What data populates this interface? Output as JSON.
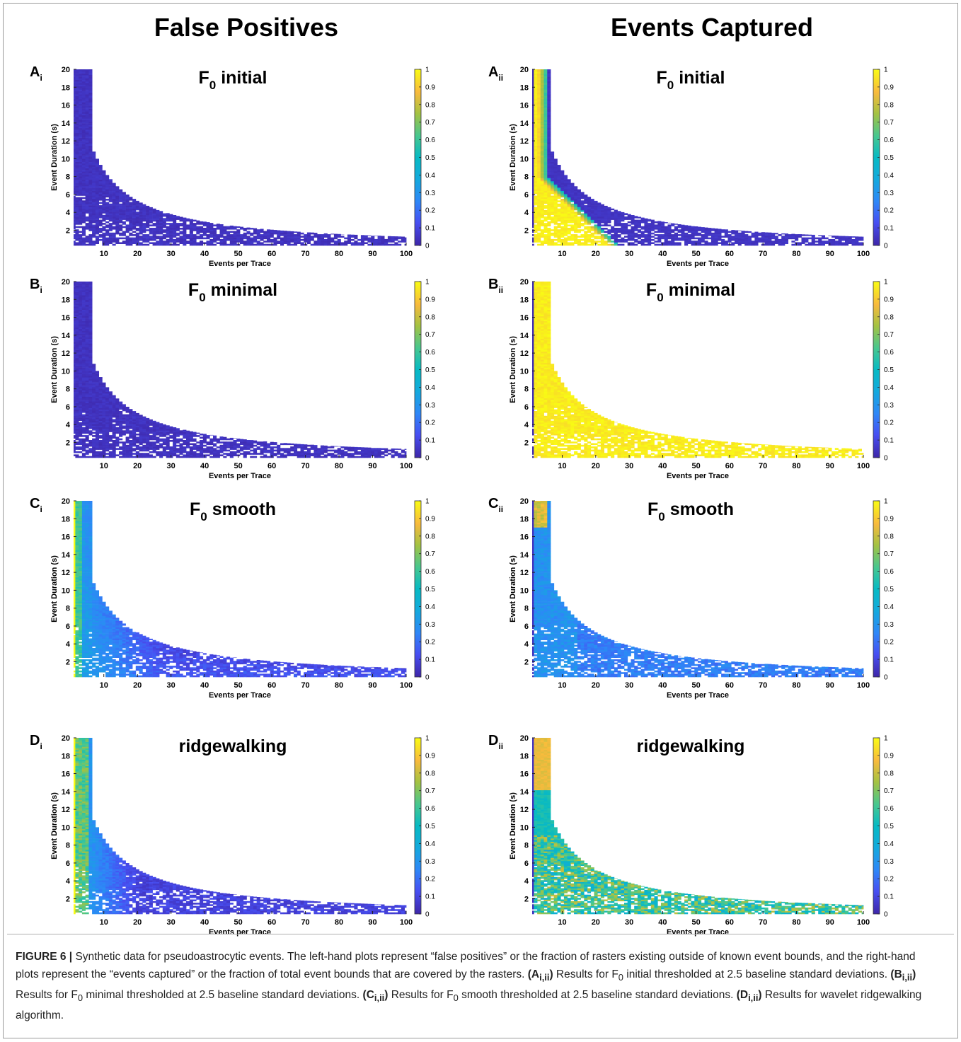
{
  "header": {
    "left_title": "False Positives",
    "right_title": "Events Captured"
  },
  "caption": {
    "figure_label": "FIGURE 6 |",
    "p1": " Synthetic data for pseudoastrocytic events. The left-hand plots represent “false positives” or the fraction of rasters existing outside of known event bounds, and the right-hand plots represent the “events captured” or the fraction of total event bounds that are covered by the rasters. ",
    "a_tag": "(A",
    "a_sub": "i,ii",
    "a_close": ")",
    "a_text": " Results for F",
    "a_text2": " initial thresholded at 2.5 baseline standard deviations. ",
    "b_tag": "(B",
    "b_sub": "i,ii",
    "b_close": ")",
    "b_text": " Results for F",
    "b_text2": " minimal thresholded at 2.5 baseline standard deviations. ",
    "c_tag": "(C",
    "c_sub": "i,ii",
    "c_close": ")",
    "c_text": " Results for F",
    "c_text2": " smooth thresholded at 2.5 baseline standard deviations. ",
    "d_tag": "(D",
    "d_sub": "i,ii",
    "d_close": ")",
    "d_text": " Results for wavelet ridgewalking algorithm.",
    "sub0": "0"
  },
  "chart_data": [
    {
      "type": "heatmap",
      "panel": "A",
      "panel_sub": "i",
      "title_main": "F",
      "title_sub": "0",
      "title_rest": " initial",
      "xlabel": "Events per Trace",
      "ylabel": "Event Duration (s)",
      "xticks": [
        10,
        20,
        30,
        40,
        50,
        60,
        70,
        80,
        90,
        100
      ],
      "yticks": [
        2,
        4,
        6,
        8,
        10,
        12,
        14,
        16,
        18,
        20
      ],
      "xlim": [
        1,
        100
      ],
      "ylim": [
        0.3,
        20
      ],
      "colorbar_ticks": [
        "0",
        "0.1",
        "0.2",
        "0.3",
        "0.4",
        "0.5",
        "0.6",
        "0.7",
        "0.8",
        "0.9",
        "1"
      ],
      "clim": [
        0,
        1
      ],
      "colormap": "parula",
      "pattern": "fp-low",
      "approx_value": 0.02
    },
    {
      "type": "heatmap",
      "panel": "A",
      "panel_sub": "ii",
      "title_main": "F",
      "title_sub": "0",
      "title_rest": " initial",
      "xlabel": "Events per Trace",
      "ylabel": "Event Duration (s)",
      "xticks": [
        10,
        20,
        30,
        40,
        50,
        60,
        70,
        80,
        90,
        100
      ],
      "yticks": [
        2,
        4,
        6,
        8,
        10,
        12,
        14,
        16,
        18,
        20
      ],
      "xlim": [
        1,
        100
      ],
      "ylim": [
        0.3,
        20
      ],
      "colorbar_ticks": [
        "0",
        "0.1",
        "0.2",
        "0.3",
        "0.4",
        "0.5",
        "0.6",
        "0.7",
        "0.8",
        "0.9",
        "1"
      ],
      "clim": [
        0,
        1
      ],
      "colormap": "parula",
      "pattern": "ec-initial",
      "approx_value_left_band": 1,
      "approx_value_right": 0.02
    },
    {
      "type": "heatmap",
      "panel": "B",
      "panel_sub": "i",
      "title_main": "F",
      "title_sub": "0",
      "title_rest": " minimal",
      "xlabel": "Events per Trace",
      "ylabel": "Event Duration (s)",
      "xticks": [
        10,
        20,
        30,
        40,
        50,
        60,
        70,
        80,
        90,
        100
      ],
      "yticks": [
        2,
        4,
        6,
        8,
        10,
        12,
        14,
        16,
        18,
        20
      ],
      "xlim": [
        1,
        100
      ],
      "ylim": [
        0.3,
        20
      ],
      "colorbar_ticks": [
        "0",
        "0.1",
        "0.2",
        "0.3",
        "0.4",
        "0.5",
        "0.6",
        "0.7",
        "0.8",
        "0.9",
        "1"
      ],
      "clim": [
        0,
        1
      ],
      "colormap": "parula",
      "pattern": "fp-low",
      "approx_value": 0.02
    },
    {
      "type": "heatmap",
      "panel": "B",
      "panel_sub": "ii",
      "title_main": "F",
      "title_sub": "0",
      "title_rest": " minimal",
      "xlabel": "Events per Trace",
      "ylabel": "Event Duration (s)",
      "xticks": [
        10,
        20,
        30,
        40,
        50,
        60,
        70,
        80,
        90,
        100
      ],
      "yticks": [
        2,
        4,
        6,
        8,
        10,
        12,
        14,
        16,
        18,
        20
      ],
      "xlim": [
        1,
        100
      ],
      "ylim": [
        0.3,
        20
      ],
      "colorbar_ticks": [
        "0",
        "0.1",
        "0.2",
        "0.3",
        "0.4",
        "0.5",
        "0.6",
        "0.7",
        "0.8",
        "0.9",
        "1"
      ],
      "clim": [
        0,
        1
      ],
      "colormap": "parula",
      "pattern": "ec-high",
      "approx_value": 0.98
    },
    {
      "type": "heatmap",
      "panel": "C",
      "panel_sub": "i",
      "title_main": "F",
      "title_sub": "0",
      "title_rest": " smooth",
      "xlabel": "Events per Trace",
      "ylabel": "Event Duration (s)",
      "xticks": [
        10,
        20,
        30,
        40,
        50,
        60,
        70,
        80,
        90,
        100
      ],
      "yticks": [
        2,
        4,
        6,
        8,
        10,
        12,
        14,
        16,
        18,
        20
      ],
      "xlim": [
        1,
        100
      ],
      "ylim": [
        0.3,
        20
      ],
      "colorbar_ticks": [
        "0",
        "0.1",
        "0.2",
        "0.3",
        "0.4",
        "0.5",
        "0.6",
        "0.7",
        "0.8",
        "0.9",
        "1"
      ],
      "clim": [
        0,
        1
      ],
      "colormap": "parula",
      "pattern": "fp-smooth",
      "approx_value": 0.15
    },
    {
      "type": "heatmap",
      "panel": "C",
      "panel_sub": "ii",
      "title_main": "F",
      "title_sub": "0",
      "title_rest": "  smooth",
      "xlabel": "Events per Trace",
      "ylabel": "Event Duration (s)",
      "xticks": [
        10,
        20,
        30,
        40,
        50,
        60,
        70,
        80,
        90,
        100
      ],
      "yticks": [
        2,
        4,
        6,
        8,
        10,
        12,
        14,
        16,
        18,
        20
      ],
      "xlim": [
        1,
        100
      ],
      "ylim": [
        0.3,
        20
      ],
      "colorbar_ticks": [
        "0",
        "0.1",
        "0.2",
        "0.3",
        "0.4",
        "0.5",
        "0.6",
        "0.7",
        "0.8",
        "0.9",
        "1"
      ],
      "clim": [
        0,
        1
      ],
      "colormap": "parula",
      "pattern": "ec-smooth",
      "approx_value": 0.2
    },
    {
      "type": "heatmap",
      "panel": "D",
      "panel_sub": "i",
      "title_main": "ridgewalking",
      "title_sub": "",
      "title_rest": "",
      "xlabel": "Events per Trace",
      "ylabel": "Event Duration (s)",
      "xticks": [
        10,
        20,
        30,
        40,
        50,
        60,
        70,
        80,
        90,
        100
      ],
      "yticks": [
        2,
        4,
        6,
        8,
        10,
        12,
        14,
        16,
        18,
        20
      ],
      "xlim": [
        1,
        100
      ],
      "ylim": [
        0.3,
        20
      ],
      "colorbar_ticks": [
        "0",
        "0.1",
        "0.2",
        "0.3",
        "0.4",
        "0.5",
        "0.6",
        "0.7",
        "0.8",
        "0.9",
        "1"
      ],
      "clim": [
        0,
        1
      ],
      "colormap": "parula",
      "pattern": "fp-ridge",
      "approx_value": 0.1
    },
    {
      "type": "heatmap",
      "panel": "D",
      "panel_sub": "ii",
      "title_main": "ridgewalking",
      "title_sub": "",
      "title_rest": "",
      "xlabel": "Events per Trace",
      "ylabel": "Event Duration (s)",
      "xticks": [
        10,
        20,
        30,
        40,
        50,
        60,
        70,
        80,
        90,
        100
      ],
      "yticks": [
        2,
        4,
        6,
        8,
        10,
        12,
        14,
        16,
        18,
        20
      ],
      "xlim": [
        1,
        100
      ],
      "ylim": [
        0.3,
        20
      ],
      "colorbar_ticks": [
        "0",
        "0.1",
        "0.2",
        "0.3",
        "0.4",
        "0.5",
        "0.6",
        "0.7",
        "0.8",
        "0.9",
        "1"
      ],
      "clim": [
        0,
        1
      ],
      "colormap": "parula",
      "pattern": "ec-ridge",
      "approx_value": 0.6
    }
  ]
}
